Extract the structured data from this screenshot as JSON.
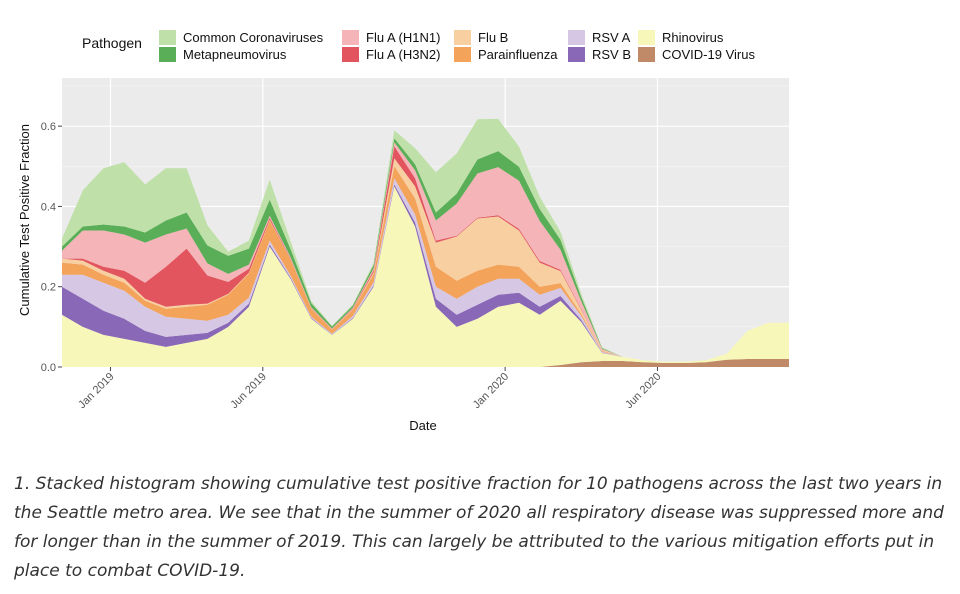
{
  "chart_data": {
    "type": "area",
    "stacked": true,
    "title": "",
    "xlabel": "Date",
    "ylabel": "Cumulative Test Positive Fraction",
    "legend_title": "Pathogen",
    "legend_position": "top",
    "grid": true,
    "ylim": [
      0,
      0.72
    ],
    "xlim": [
      0,
      105
    ],
    "x_unit": "weeks since 2018-11-12",
    "y_ticks": [
      {
        "value": 0.0,
        "label": "0.0"
      },
      {
        "value": 0.2,
        "label": "0.2"
      },
      {
        "value": 0.4,
        "label": "0.4"
      },
      {
        "value": 0.6,
        "label": "0.6"
      }
    ],
    "x_ticks": [
      {
        "value": 7,
        "label": "Jan 2019"
      },
      {
        "value": 29,
        "label": "Jun 2019"
      },
      {
        "value": 64,
        "label": "Jan 2020"
      },
      {
        "value": 86,
        "label": "Jun 2020"
      }
    ],
    "legend_layout": [
      [
        "Common Coronaviruses",
        "Metapneumovirus"
      ],
      [
        "Flu A (H1N1)",
        "Flu A (H3N2)"
      ],
      [
        "Flu B",
        "Parainfluenza"
      ],
      [
        "RSV A",
        "RSV B"
      ],
      [
        "Rhinovirus",
        "COVID-19 Virus"
      ]
    ],
    "x": [
      0,
      3,
      6,
      9,
      12,
      15,
      18,
      21,
      24,
      27,
      30,
      33,
      36,
      39,
      42,
      45,
      48,
      51,
      54,
      57,
      60,
      63,
      66,
      69,
      72,
      75,
      78,
      81,
      84,
      87,
      90,
      93,
      96,
      99,
      102,
      105
    ],
    "series": [
      {
        "name": "COVID-19 Virus",
        "color": "#c08a68",
        "values": [
          0,
          0,
          0,
          0,
          0,
          0,
          0,
          0,
          0,
          0,
          0,
          0,
          0,
          0,
          0,
          0,
          0,
          0,
          0,
          0,
          0,
          0,
          0,
          0,
          0.005,
          0.012,
          0.015,
          0.015,
          0.012,
          0.01,
          0.01,
          0.012,
          0.018,
          0.02,
          0.02,
          0.02
        ]
      },
      {
        "name": "Rhinovirus",
        "color": "#f7f7b9",
        "values": [
          0.13,
          0.1,
          0.08,
          0.07,
          0.06,
          0.05,
          0.06,
          0.07,
          0.1,
          0.15,
          0.3,
          0.22,
          0.12,
          0.08,
          0.12,
          0.2,
          0.45,
          0.35,
          0.15,
          0.1,
          0.12,
          0.15,
          0.16,
          0.13,
          0.16,
          0.1,
          0.02,
          0.01,
          0.005,
          0.003,
          0.003,
          0.005,
          0.015,
          0.07,
          0.09,
          0.09
        ]
      },
      {
        "name": "RSV B",
        "color": "#8a68b8",
        "values": [
          0.07,
          0.07,
          0.06,
          0.05,
          0.03,
          0.025,
          0.02,
          0.015,
          0.01,
          0.008,
          0.005,
          0.003,
          0.002,
          0.001,
          0.002,
          0.003,
          0.005,
          0.01,
          0.02,
          0.03,
          0.035,
          0.03,
          0.025,
          0.02,
          0.012,
          0.005,
          0.001,
          0,
          0,
          0,
          0,
          0,
          0,
          0,
          0,
          0
        ]
      },
      {
        "name": "RSV A",
        "color": "#d6c8e4",
        "values": [
          0.03,
          0.06,
          0.07,
          0.07,
          0.06,
          0.05,
          0.04,
          0.03,
          0.02,
          0.015,
          0.01,
          0.005,
          0.003,
          0.002,
          0.005,
          0.008,
          0.015,
          0.02,
          0.03,
          0.04,
          0.045,
          0.04,
          0.035,
          0.03,
          0.02,
          0.01,
          0.002,
          0,
          0,
          0,
          0,
          0,
          0,
          0,
          0,
          0
        ]
      },
      {
        "name": "Parainfluenza",
        "color": "#f3a35a",
        "values": [
          0.03,
          0.025,
          0.02,
          0.02,
          0.015,
          0.02,
          0.03,
          0.04,
          0.05,
          0.06,
          0.05,
          0.04,
          0.02,
          0.01,
          0.015,
          0.02,
          0.03,
          0.04,
          0.05,
          0.045,
          0.04,
          0.035,
          0.03,
          0.02,
          0.012,
          0.005,
          0.002,
          0,
          0,
          0,
          0,
          0,
          0,
          0,
          0,
          0
        ]
      },
      {
        "name": "Flu B",
        "color": "#f8cfa0",
        "values": [
          0.01,
          0.01,
          0.01,
          0.01,
          0.005,
          0.005,
          0.005,
          0.003,
          0.002,
          0.002,
          0.002,
          0.001,
          0.001,
          0.001,
          0.002,
          0.005,
          0.02,
          0.03,
          0.06,
          0.11,
          0.13,
          0.12,
          0.09,
          0.06,
          0.03,
          0.01,
          0.002,
          0,
          0,
          0,
          0,
          0,
          0,
          0,
          0,
          0
        ]
      },
      {
        "name": "Flu A (H3N2)",
        "color": "#e2545e",
        "values": [
          0.0,
          0.005,
          0.01,
          0.02,
          0.04,
          0.1,
          0.14,
          0.07,
          0.03,
          0.01,
          0.005,
          0.002,
          0.001,
          0.001,
          0.002,
          0.005,
          0.03,
          0.02,
          0.005,
          0.002,
          0.002,
          0.003,
          0.004,
          0.004,
          0.003,
          0.002,
          0,
          0,
          0,
          0,
          0,
          0,
          0,
          0,
          0,
          0
        ]
      },
      {
        "name": "Flu A (H1N1)",
        "color": "#f4b4b8",
        "values": [
          0.02,
          0.07,
          0.09,
          0.09,
          0.1,
          0.08,
          0.05,
          0.03,
          0.02,
          0.01,
          0.005,
          0.003,
          0.002,
          0.001,
          0.002,
          0.005,
          0.01,
          0.02,
          0.05,
          0.08,
          0.11,
          0.12,
          0.12,
          0.1,
          0.05,
          0.02,
          0.003,
          0,
          0,
          0,
          0,
          0,
          0,
          0,
          0,
          0
        ]
      },
      {
        "name": "Metapneumovirus",
        "color": "#5aae57",
        "values": [
          0.01,
          0.01,
          0.015,
          0.02,
          0.025,
          0.035,
          0.04,
          0.045,
          0.045,
          0.04,
          0.04,
          0.02,
          0.01,
          0.005,
          0.005,
          0.008,
          0.01,
          0.015,
          0.02,
          0.025,
          0.035,
          0.04,
          0.035,
          0.03,
          0.025,
          0.01,
          0.002,
          0,
          0,
          0,
          0,
          0,
          0,
          0,
          0,
          0
        ]
      },
      {
        "name": "Common Coronaviruses",
        "color": "#bfe0a8",
        "values": [
          0.02,
          0.09,
          0.14,
          0.16,
          0.12,
          0.13,
          0.11,
          0.05,
          0.01,
          0.02,
          0.05,
          0.02,
          0.005,
          0.002,
          0.003,
          0.005,
          0.02,
          0.04,
          0.1,
          0.1,
          0.1,
          0.08,
          0.05,
          0.03,
          0.02,
          0.008,
          0.002,
          0,
          0,
          0,
          0,
          0,
          0,
          0,
          0,
          0
        ]
      }
    ]
  },
  "caption": "1. Stacked histogram showing cumulative test positive fraction for 10 pathogens across the last two years in the Seattle metro area. We see that in the summer of 2020 all respiratory disease was suppressed more and for longer than in the summer of 2019. This can largely be attributed to the various mitigation efforts put in place to combat COVID-19."
}
